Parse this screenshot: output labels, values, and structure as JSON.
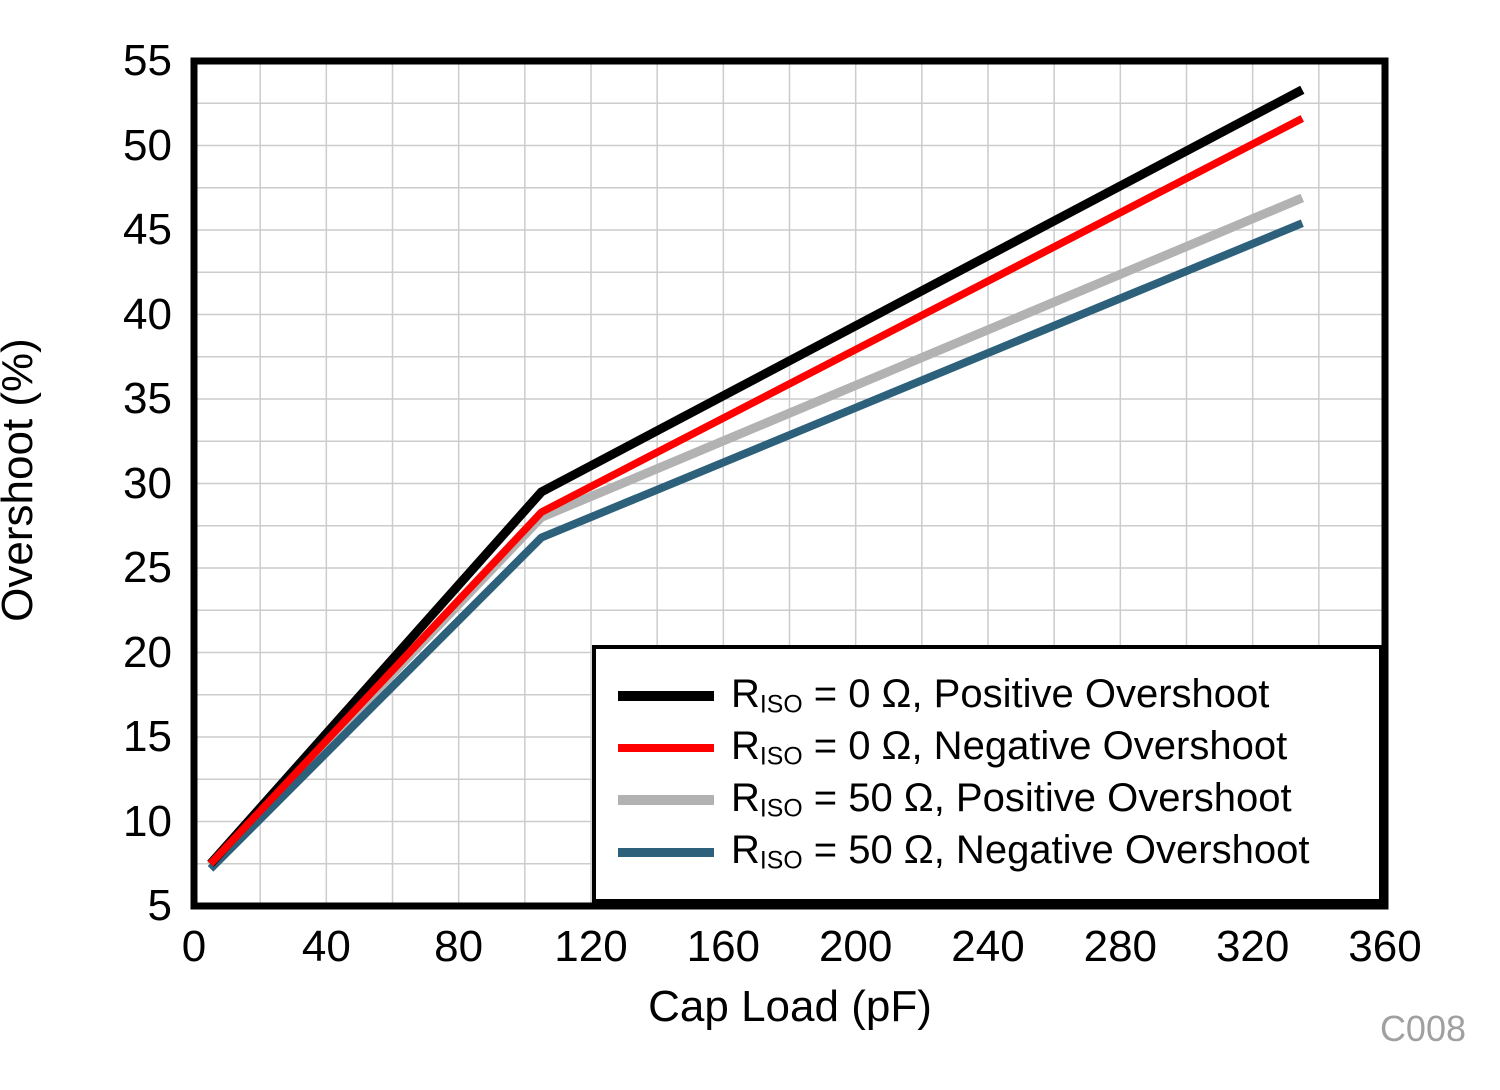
{
  "figure": {
    "code_label": "C008"
  },
  "style": {
    "background": "#ffffff",
    "grid_color": "#cccccc",
    "frame_color": "#000000",
    "text_color": "#000000",
    "code_label_color": "#a0a0a0"
  },
  "chart_data": {
    "type": "line",
    "title": "",
    "xlabel": "Cap Load (pF)",
    "ylabel": "Overshoot (%)",
    "xlim": [
      0,
      360
    ],
    "ylim": [
      5,
      55
    ],
    "x_major_ticks": [
      0,
      40,
      80,
      120,
      160,
      200,
      240,
      280,
      320,
      360
    ],
    "y_major_ticks": [
      5,
      10,
      15,
      20,
      25,
      30,
      35,
      40,
      45,
      50,
      55
    ],
    "x_minor_step": 20,
    "y_minor_step": 2.5,
    "grid": "minor gridlines on, light gray",
    "legend_position": "bottom-right inside plot",
    "series": [
      {
        "name": "RISO = 0 Ω, Positive Overshoot",
        "label_prefix": "R",
        "label_sub": "ISO",
        "label_rest": " = 0 Ω, Positive Overshoot",
        "color": "#000000",
        "line_width": 9,
        "z": 2,
        "x": [
          5,
          105,
          335
        ],
        "y": [
          7.5,
          29.5,
          53.3
        ]
      },
      {
        "name": "RISO = 0 Ω, Negative Overshoot",
        "label_prefix": "R",
        "label_sub": "ISO",
        "label_rest": " = 0 Ω, Negative Overshoot",
        "color": "#ff0000",
        "line_width": 7.5,
        "z": 3,
        "x": [
          5,
          105,
          335
        ],
        "y": [
          7.5,
          28.3,
          51.6
        ]
      },
      {
        "name": "RISO = 50 Ω, Positive Overshoot",
        "label_prefix": "R",
        "label_sub": "ISO",
        "label_rest": " = 50 Ω, Positive Overshoot",
        "color": "#b2b2b2",
        "line_width": 9,
        "z": 0,
        "x": [
          5,
          105,
          335
        ],
        "y": [
          7.4,
          28.0,
          46.9
        ]
      },
      {
        "name": "RISO = 50 Ω, Negative Overshoot",
        "label_prefix": "R",
        "label_sub": "ISO",
        "label_rest": " = 50 Ω, Negative Overshoot",
        "color": "#2d607a",
        "line_width": 8,
        "z": 1,
        "x": [
          5,
          105,
          335
        ],
        "y": [
          7.2,
          26.8,
          45.4
        ]
      }
    ]
  }
}
